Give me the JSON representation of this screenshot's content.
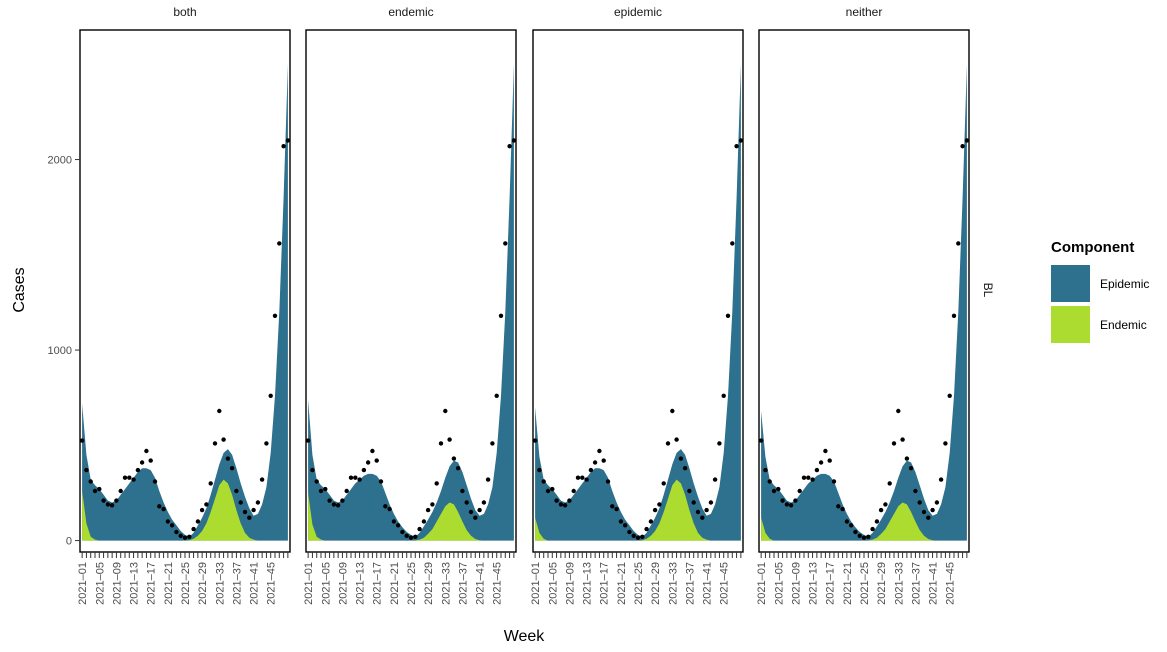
{
  "chart_data": {
    "type": "area",
    "xlabel": "Week",
    "ylabel": "Cases",
    "row_strip": "BL",
    "ylim": [
      -60,
      2680
    ],
    "y_ticks": [
      0,
      1000,
      2000
    ],
    "x_tick_labels": [
      "2021–01",
      "2021–05",
      "2021–09",
      "2021–13",
      "2021–17",
      "2021–21",
      "2021–25",
      "2021–29",
      "2021–33",
      "2021–37",
      "2021–41",
      "2021–45"
    ],
    "x_tick_weeks": [
      1,
      5,
      9,
      13,
      17,
      21,
      25,
      29,
      33,
      37,
      41,
      45
    ],
    "weeks": [
      1,
      2,
      3,
      4,
      5,
      6,
      7,
      8,
      9,
      10,
      11,
      12,
      13,
      14,
      15,
      16,
      17,
      18,
      19,
      20,
      21,
      22,
      23,
      24,
      25,
      26,
      27,
      28,
      29,
      30,
      31,
      32,
      33,
      34,
      35,
      36,
      37,
      38,
      39,
      40,
      41,
      42,
      43,
      44,
      45,
      46,
      47,
      48,
      49
    ],
    "legend": {
      "title": "Component",
      "items": [
        {
          "label": "Epidemic",
          "color": "#2d718e"
        },
        {
          "label": "Endemic",
          "color": "#addc30"
        }
      ]
    },
    "observed": [
      525,
      370,
      310,
      260,
      270,
      210,
      190,
      185,
      210,
      260,
      330,
      330,
      320,
      370,
      410,
      470,
      420,
      310,
      180,
      165,
      100,
      80,
      45,
      25,
      15,
      20,
      60,
      100,
      160,
      190,
      300,
      510,
      680,
      530,
      430,
      380,
      260,
      200,
      150,
      120,
      160,
      200,
      320,
      510,
      760,
      1180,
      1560,
      2070,
      2100
    ],
    "panels": [
      {
        "name": "both",
        "total": [
          720,
          450,
          320,
          290,
          270,
          240,
          210,
          200,
          210,
          240,
          270,
          300,
          330,
          360,
          380,
          380,
          370,
          330,
          260,
          200,
          150,
          110,
          80,
          50,
          30,
          20,
          40,
          80,
          120,
          170,
          240,
          320,
          400,
          460,
          480,
          450,
          380,
          300,
          230,
          170,
          130,
          140,
          190,
          280,
          460,
          760,
          1200,
          1800,
          2500
        ],
        "endemic": [
          260,
          90,
          20,
          5,
          0,
          0,
          0,
          0,
          0,
          0,
          0,
          0,
          0,
          0,
          0,
          0,
          0,
          0,
          0,
          0,
          0,
          0,
          0,
          0,
          0,
          2,
          10,
          25,
          50,
          90,
          150,
          220,
          290,
          320,
          300,
          240,
          160,
          90,
          40,
          15,
          5,
          0,
          0,
          0,
          0,
          0,
          0,
          0,
          0
        ]
      },
      {
        "name": "endemic",
        "total": [
          740,
          450,
          320,
          290,
          270,
          240,
          210,
          200,
          210,
          240,
          270,
          300,
          320,
          340,
          350,
          350,
          340,
          310,
          250,
          190,
          140,
          100,
          70,
          45,
          30,
          20,
          40,
          75,
          110,
          150,
          200,
          260,
          330,
          390,
          420,
          410,
          360,
          290,
          220,
          160,
          130,
          140,
          190,
          280,
          460,
          760,
          1200,
          1800,
          2500
        ],
        "endemic": [
          250,
          85,
          20,
          5,
          0,
          0,
          0,
          0,
          0,
          0,
          0,
          0,
          0,
          0,
          0,
          0,
          0,
          0,
          0,
          0,
          0,
          0,
          0,
          0,
          0,
          1,
          5,
          15,
          35,
          60,
          100,
          140,
          180,
          200,
          190,
          150,
          100,
          55,
          25,
          8,
          2,
          0,
          0,
          0,
          0,
          0,
          0,
          0,
          0
        ]
      },
      {
        "name": "epidemic",
        "total": [
          700,
          440,
          320,
          290,
          270,
          240,
          210,
          200,
          210,
          240,
          270,
          300,
          330,
          360,
          380,
          380,
          370,
          330,
          260,
          200,
          150,
          110,
          80,
          50,
          30,
          20,
          40,
          80,
          120,
          170,
          240,
          320,
          400,
          460,
          480,
          450,
          380,
          300,
          230,
          170,
          130,
          140,
          190,
          280,
          460,
          760,
          1200,
          1800,
          2500
        ],
        "endemic": [
          120,
          40,
          10,
          0,
          0,
          0,
          0,
          0,
          0,
          0,
          0,
          0,
          0,
          0,
          0,
          0,
          0,
          0,
          0,
          0,
          0,
          0,
          0,
          0,
          0,
          2,
          10,
          25,
          50,
          90,
          150,
          220,
          290,
          320,
          300,
          240,
          160,
          90,
          40,
          15,
          5,
          0,
          0,
          0,
          0,
          0,
          0,
          0,
          0
        ]
      },
      {
        "name": "neither",
        "total": [
          680,
          440,
          320,
          290,
          270,
          240,
          210,
          200,
          210,
          240,
          270,
          300,
          320,
          340,
          350,
          350,
          340,
          310,
          250,
          190,
          140,
          100,
          70,
          45,
          30,
          20,
          40,
          75,
          110,
          150,
          200,
          260,
          330,
          390,
          420,
          410,
          360,
          290,
          220,
          160,
          130,
          140,
          190,
          280,
          460,
          760,
          1200,
          1800,
          2500
        ],
        "endemic": [
          120,
          40,
          10,
          0,
          0,
          0,
          0,
          0,
          0,
          0,
          0,
          0,
          0,
          0,
          0,
          0,
          0,
          0,
          0,
          0,
          0,
          0,
          0,
          0,
          0,
          1,
          5,
          15,
          35,
          60,
          100,
          140,
          180,
          200,
          190,
          150,
          100,
          55,
          25,
          8,
          2,
          0,
          0,
          0,
          0,
          0,
          0,
          0,
          0
        ]
      }
    ]
  }
}
